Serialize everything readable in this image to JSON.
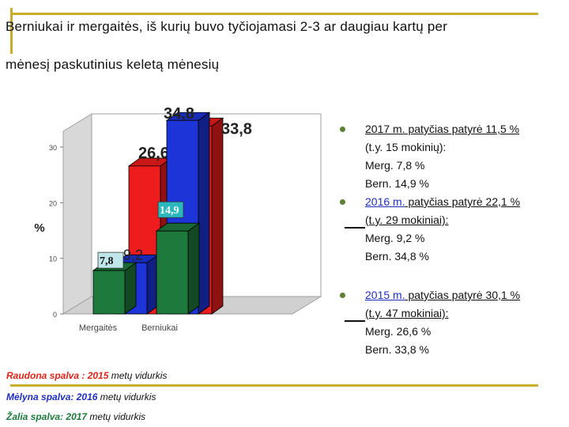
{
  "slide": {
    "title_line1": "Berniukai ir mergaitės, iš kurių buvo tyčiojamasi 2-3 ar daugiau kartų per",
    "title_line2": "mėnesį paskutinius keletą mėnesių"
  },
  "chart_data": {
    "type": "bar",
    "style": "3d-clustered",
    "categories": [
      "Mergaitės",
      "Berniukai"
    ],
    "ylabel": "%",
    "ylim": [
      0,
      30
    ],
    "yticks": [
      "0",
      "10",
      "20",
      "30"
    ],
    "grid": false,
    "series": [
      {
        "name": "2015",
        "color": "#ee1c1c",
        "values": [
          26.6,
          33.8
        ],
        "labels": [
          "26,6",
          "33,8"
        ]
      },
      {
        "name": "2016",
        "color": "#1c34d8",
        "values": [
          9.2,
          34.8
        ],
        "labels": [
          "9,2",
          "34,8"
        ]
      },
      {
        "name": "2017",
        "color": "#1e7a3c",
        "values": [
          7.8,
          14.9
        ],
        "labels": [
          "7,8",
          "14,9"
        ]
      }
    ]
  },
  "bullets": [
    {
      "head_year": "2017 m.",
      "head_text": " patyčias patyrė 11,5 %",
      "lines": [
        "(t.y. 15 mokinių):",
        "Merg. 7,8 %",
        "Bern. 14,9 %"
      ]
    },
    {
      "head_year": "2016 m.",
      "head_text": " patyčias patyrė 22,1 %",
      "lines": [
        "(t.y. 29 mokiniai):",
        "Merg. 9,2 %",
        "Bern. 34,8 %"
      ]
    },
    {
      "head_year": "2015 m.",
      "head_text": " patyčias patyrė 30,1 %",
      "lines": [
        "(t.y. 47 mokiniai):",
        "Merg. 26,6 %",
        "Bern. 33,8 %"
      ]
    }
  ],
  "legend_notes": [
    {
      "color_label": "Raudona spalva :",
      "year": "2015",
      "rest": " metų vidurkis",
      "color": "#e0241a"
    },
    {
      "color_label": "Mėlyna spalva:",
      "year": "2016",
      "rest": " metų vidurkis",
      "color": "#1f2fbf"
    },
    {
      "color_label": "Žalia spalva:",
      "year": "2017",
      "rest": " metų vidurkis",
      "color": "#1e7a3c"
    }
  ]
}
